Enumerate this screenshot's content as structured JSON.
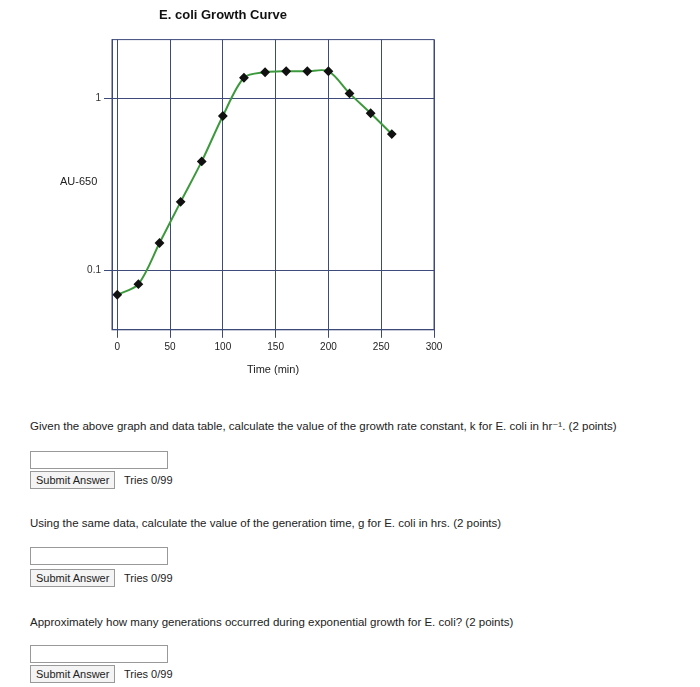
{
  "chart_data": {
    "type": "line",
    "title": "E. coli Growth Curve",
    "x_label": "Time (min)",
    "y_label": "AU-650",
    "x": [
      0,
      20,
      40,
      60,
      80,
      100,
      120,
      140,
      160,
      180,
      200,
      220,
      240,
      260
    ],
    "values": [
      0.072,
      0.083,
      0.144,
      0.25,
      0.43,
      0.79,
      1.32,
      1.42,
      1.44,
      1.44,
      1.44,
      1.07,
      0.82,
      0.62
    ],
    "color": "#3c9a3c",
    "marker": "diamond",
    "log": "y",
    "grid": true,
    "xlim": [
      -5,
      300
    ],
    "xticks": [
      0,
      50,
      100,
      150,
      200,
      250,
      300
    ],
    "ylim": [
      0.045,
      2.2
    ],
    "yticks": [
      0.1,
      1
    ]
  },
  "questions": [
    {
      "text": "Given the above graph and data table, calculate the value of the growth rate constant, k for E. coli in hr⁻¹. (2 points)",
      "button": "Submit Answer",
      "tries": "Tries 0/99"
    },
    {
      "text": "Using the same data, calculate the value of the generation time, g for E. coli in hrs. (2 points)",
      "button": "Submit Answer",
      "tries": "Tries 0/99"
    },
    {
      "text": "Approximately how many generations occurred during exponential growth for E. coli? (2 points)",
      "button": "Submit Answer",
      "tries": "Tries 0/99"
    }
  ]
}
